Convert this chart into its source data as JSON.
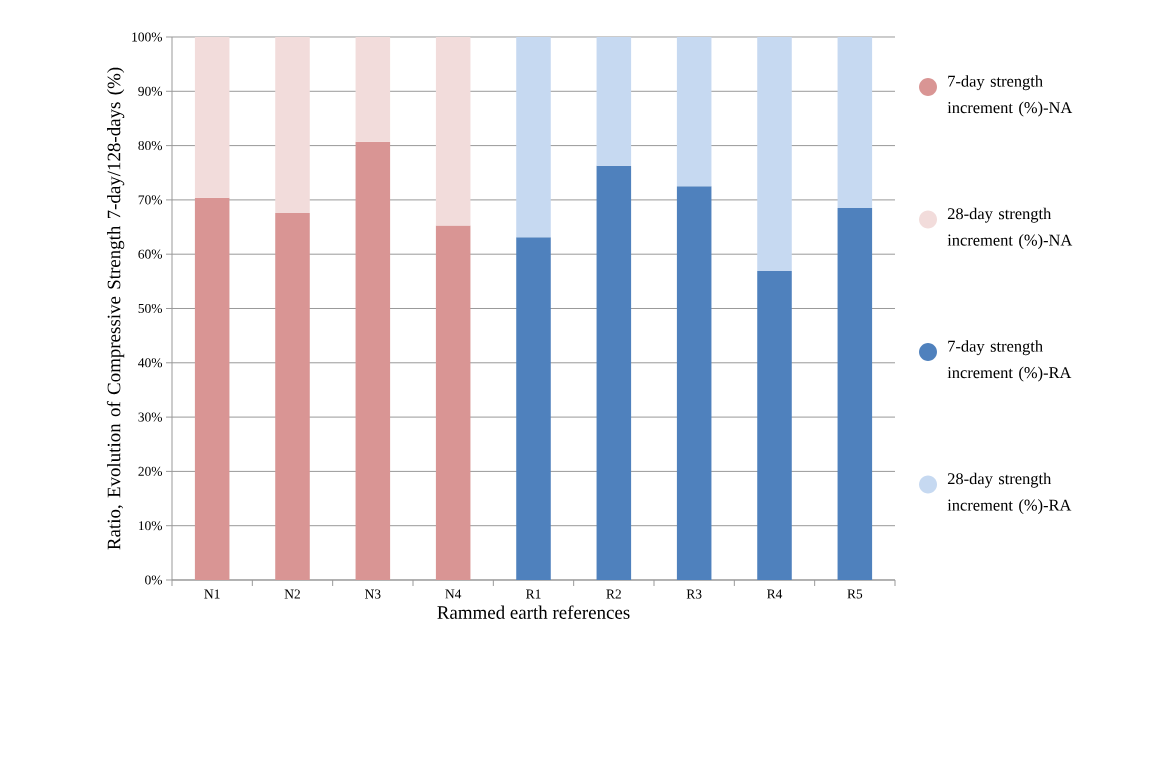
{
  "chart_data": {
    "type": "bar",
    "stacked": true,
    "xlabel": "Rammed earth references",
    "ylabel": "Ratio, Evolution of Compressive Strength 7-day/128-days (%)",
    "categories": [
      "N1",
      "N2",
      "N3",
      "N4",
      "R1",
      "R2",
      "R3",
      "R4",
      "R5"
    ],
    "series": [
      {
        "name": "7-day strength increment (%)-NA",
        "color": "#d99594",
        "values": [
          70.4,
          67.6,
          80.7,
          65.3,
          null,
          null,
          null,
          null,
          null
        ]
      },
      {
        "name": "28-day strength increment (%)-NA",
        "color": "#f2dcdb",
        "values": [
          29.6,
          32.4,
          19.3,
          34.7,
          null,
          null,
          null,
          null,
          null
        ]
      },
      {
        "name": "7-day strength increment (%)-RA",
        "color": "#4f81bd",
        "values": [
          null,
          null,
          null,
          null,
          63.1,
          76.3,
          72.5,
          56.9,
          68.5
        ]
      },
      {
        "name": "28-day strength increment (%)-RA",
        "color": "#c6d9f1",
        "values": [
          null,
          null,
          null,
          null,
          36.9,
          23.7,
          27.5,
          43.1,
          31.5
        ]
      }
    ],
    "ylim": [
      0,
      100
    ],
    "yticks": [
      {
        "value": 0,
        "label": "0%"
      },
      {
        "value": 10,
        "label": "10%"
      },
      {
        "value": 20,
        "label": "20%"
      },
      {
        "value": 30,
        "label": "30%"
      },
      {
        "value": 40,
        "label": "40%"
      },
      {
        "value": 50,
        "label": "50%"
      },
      {
        "value": 60,
        "label": "60%"
      },
      {
        "value": 70,
        "label": "70%"
      },
      {
        "value": 80,
        "label": "80%"
      },
      {
        "value": 90,
        "label": "90%"
      },
      {
        "value": 100,
        "label": "100%"
      }
    ],
    "grid": "y",
    "legend": "right"
  }
}
